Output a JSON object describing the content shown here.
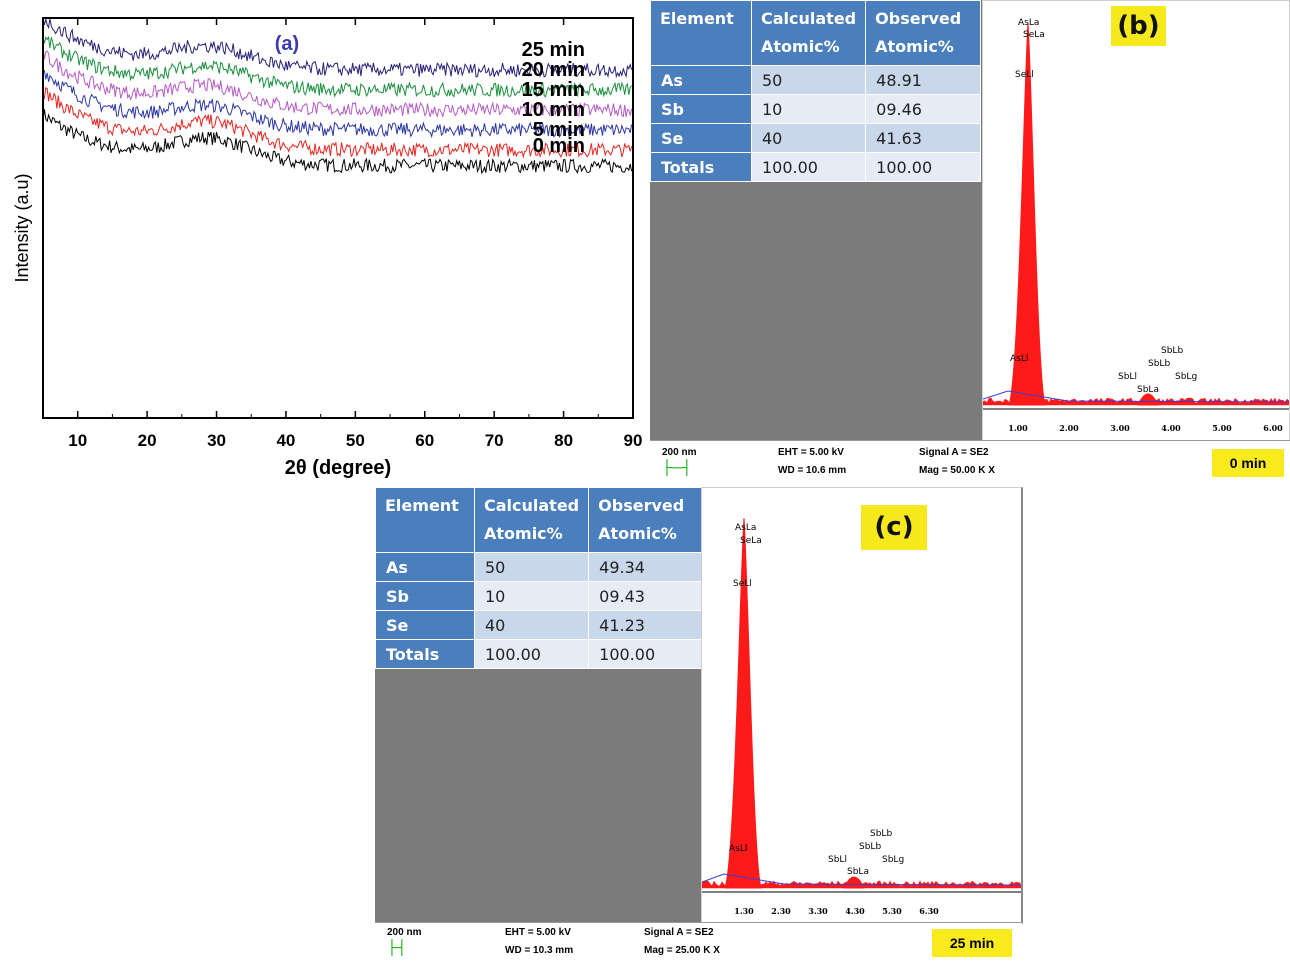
{
  "chart_data": [
    {
      "type": "line",
      "panel": "(a)",
      "xlabel": "2θ (degree)",
      "ylabel": "Intensity (a.u)",
      "xlim": [
        5,
        90
      ],
      "xticks": [
        10,
        20,
        30,
        40,
        50,
        60,
        70,
        80,
        90
      ],
      "grid": false,
      "series": [
        {
          "name": "0 min",
          "color": "#000000",
          "start": 0.76,
          "end": 0.63,
          "hump": 0.06
        },
        {
          "name": "5 min",
          "color": "#e8251f",
          "start": 0.82,
          "end": 0.67,
          "hump": 0.06
        },
        {
          "name": "10 min",
          "color": "#2d36a6",
          "start": 0.87,
          "end": 0.72,
          "hump": 0.05
        },
        {
          "name": "15 min",
          "color": "#b45bc4",
          "start": 0.91,
          "end": 0.77,
          "hump": 0.05
        },
        {
          "name": "20 min",
          "color": "#1a8f3c",
          "start": 0.95,
          "end": 0.82,
          "hump": 0.05
        },
        {
          "name": "25 min",
          "color": "#262278",
          "start": 1.0,
          "end": 0.87,
          "hump": 0.05
        }
      ]
    },
    {
      "type": "table",
      "panel": "(b)",
      "headers": [
        "Element",
        "Calculated Atomic%",
        "Observed Atomic%"
      ],
      "rows": [
        [
          "As",
          "50",
          "48.91"
        ],
        [
          "Sb",
          "10",
          "09.46"
        ],
        [
          "Se",
          "40",
          "41.63"
        ],
        [
          "Totals",
          "100.00",
          "100.00"
        ]
      ]
    },
    {
      "type": "line",
      "panel": "(b) EDX spectrum",
      "xticks": [
        "1.00",
        "2.00",
        "3.00",
        "4.00",
        "5.00",
        "6.00"
      ],
      "peak_labels": [
        "AsLa",
        "SeLa",
        "SeLl",
        "AsLl",
        "SbLl",
        "SbLb",
        "SbLb",
        "SbLg",
        "SbLa"
      ]
    },
    {
      "type": "table",
      "panel": "(c)",
      "headers": [
        "Element",
        "Calculated Atomic%",
        "Observed Atomic%"
      ],
      "rows": [
        [
          "As",
          "50",
          "49.34"
        ],
        [
          "Sb",
          "10",
          "09.43"
        ],
        [
          "Se",
          "40",
          "41.23"
        ],
        [
          "Totals",
          "100.00",
          "100.00"
        ]
      ]
    },
    {
      "type": "line",
      "panel": "(c) EDX spectrum",
      "xticks": [
        "1.30",
        "2.30",
        "3.30",
        "4.30",
        "5.30",
        "6.30"
      ],
      "peak_labels": [
        "AsLa",
        "SeLa",
        "SeLl",
        "AsLl",
        "SbLl",
        "SbLb",
        "SbLb",
        "SbLg",
        "SbLa"
      ]
    }
  ],
  "panel_a": {
    "label": "(a)"
  },
  "panel_b": {
    "label": "(b)",
    "scale": "200 nm",
    "eht": "EHT =  5.00 kV",
    "wd": "WD = 10.6 mm",
    "signal": "Signal A = SE2",
    "mag": "Mag =   50.00 K X",
    "time": "0 min"
  },
  "panel_c": {
    "label": "(c)",
    "scale": "200 nm",
    "eht": "EHT =  5.00 kV",
    "wd": "WD = 10.3 mm",
    "signal": "Signal A = SE2",
    "mag": "Mag =  25.00 K X",
    "time": "25 min"
  },
  "colors": {
    "table_header": "#4a7ebc",
    "edx_spectrum": "#ff1a1a",
    "label_bg": "#f5e81c"
  }
}
